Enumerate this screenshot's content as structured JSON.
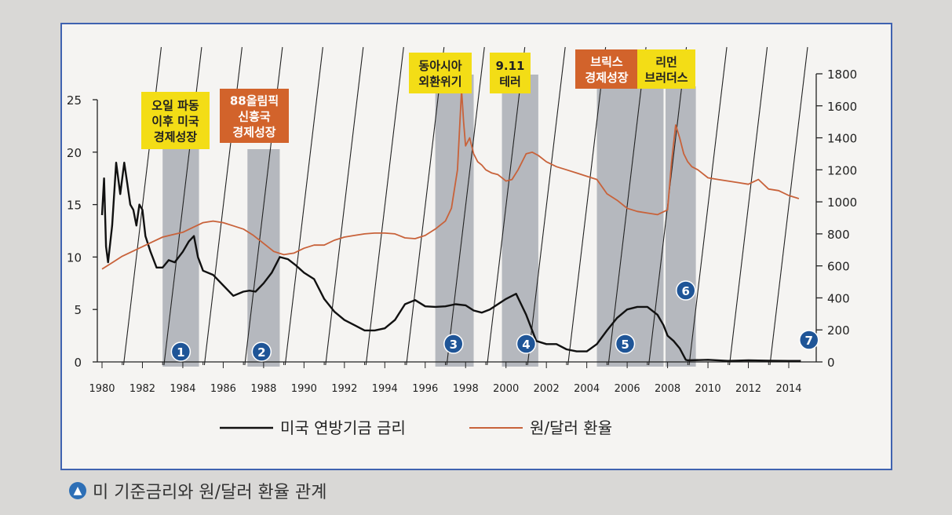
{
  "chart_data": {
    "type": "line",
    "left_axis": {
      "ticks": [
        0,
        5,
        10,
        15,
        20,
        25
      ],
      "ylim": [
        0,
        25
      ]
    },
    "right_axis": {
      "ticks": [
        0,
        200,
        400,
        600,
        800,
        1000,
        1200,
        1400,
        1600,
        1800
      ],
      "ylim": [
        0,
        1800
      ]
    },
    "x_axis": {
      "ticks": [
        "1980",
        "1982",
        "1984",
        "1986",
        "1988",
        "1990",
        "1992",
        "1994",
        "1996",
        "1998",
        "2000",
        "2002",
        "2004",
        "2006",
        "2008",
        "2010",
        "2012",
        "2014"
      ],
      "xlim": [
        1980,
        2015
      ]
    },
    "series": [
      {
        "name": "미국 연방기금 금리",
        "axis": "left",
        "color": "#111111",
        "x": [
          1980.0,
          1980.1,
          1980.2,
          1980.3,
          1980.5,
          1980.7,
          1980.9,
          1981.1,
          1981.25,
          1981.4,
          1981.55,
          1981.7,
          1981.85,
          1982.0,
          1982.15,
          1982.4,
          1982.7,
          1983.0,
          1983.3,
          1983.6,
          1984.0,
          1984.3,
          1984.55,
          1984.75,
          1985.0,
          1985.5,
          1986.0,
          1986.5,
          1987.0,
          1987.3,
          1987.6,
          1988.0,
          1988.4,
          1988.8,
          1989.2,
          1989.6,
          1990.0,
          1990.5,
          1991.0,
          1991.5,
          1992.0,
          1992.5,
          1993.0,
          1993.5,
          1994.0,
          1994.5,
          1995.0,
          1995.5,
          1996.0,
          1996.5,
          1997.0,
          1997.5,
          1998.0,
          1998.4,
          1998.8,
          1999.2,
          1999.6,
          2000.0,
          2000.5,
          2001.0,
          2001.5,
          2002.0,
          2002.5,
          2003.0,
          2003.5,
          2004.0,
          2004.5,
          2005.0,
          2005.5,
          2006.0,
          2006.5,
          2007.0,
          2007.5,
          2007.8,
          2008.0,
          2008.3,
          2008.6,
          2008.9,
          2009.0,
          2010.0,
          2011.0,
          2012.0,
          2013.0,
          2014.0,
          2014.6
        ],
        "y": [
          14.0,
          17.5,
          11.0,
          9.5,
          13.0,
          19.0,
          16.0,
          19.0,
          17.0,
          15.0,
          14.5,
          13.0,
          15.0,
          14.5,
          12.0,
          10.5,
          9.0,
          9.0,
          9.7,
          9.5,
          10.5,
          11.5,
          12.0,
          10.0,
          8.7,
          8.3,
          7.3,
          6.3,
          6.7,
          6.8,
          6.7,
          7.5,
          8.5,
          10.0,
          9.8,
          9.2,
          8.5,
          7.9,
          6.0,
          4.8,
          4.0,
          3.5,
          3.0,
          3.0,
          3.2,
          4.0,
          5.5,
          5.9,
          5.3,
          5.25,
          5.3,
          5.5,
          5.4,
          4.9,
          4.7,
          5.0,
          5.5,
          6.0,
          6.5,
          4.5,
          2.0,
          1.7,
          1.7,
          1.2,
          1.0,
          1.0,
          1.7,
          3.0,
          4.2,
          5.0,
          5.25,
          5.25,
          4.5,
          3.5,
          2.5,
          2.0,
          1.3,
          0.2,
          0.15,
          0.2,
          0.1,
          0.15,
          0.12,
          0.1,
          0.1
        ]
      },
      {
        "name": "원/달러 환율",
        "axis": "right",
        "color": "#c8623a",
        "x": [
          1980.0,
          1980.5,
          1981.0,
          1981.5,
          1982.0,
          1982.5,
          1983.0,
          1983.5,
          1984.0,
          1984.5,
          1985.0,
          1985.5,
          1986.0,
          1986.5,
          1987.0,
          1987.5,
          1988.0,
          1988.5,
          1989.0,
          1989.5,
          1990.0,
          1990.5,
          1991.0,
          1991.5,
          1992.0,
          1992.5,
          1993.0,
          1993.5,
          1994.0,
          1994.5,
          1995.0,
          1995.5,
          1996.0,
          1996.5,
          1997.0,
          1997.3,
          1997.6,
          1997.8,
          1997.9,
          1998.0,
          1998.2,
          1998.4,
          1998.6,
          1998.8,
          1999.0,
          1999.3,
          1999.6,
          2000.0,
          2000.3,
          2000.6,
          2001.0,
          2001.3,
          2001.6,
          2002.0,
          2002.5,
          2003.0,
          2003.5,
          2004.0,
          2004.5,
          2005.0,
          2005.5,
          2006.0,
          2006.5,
          2007.0,
          2007.5,
          2008.0,
          2008.2,
          2008.4,
          2008.6,
          2008.8,
          2009.0,
          2009.2,
          2009.5,
          2010.0,
          2010.5,
          2011.0,
          2011.5,
          2012.0,
          2012.5,
          2013.0,
          2013.5,
          2014.0,
          2014.5
        ],
        "y": [
          580,
          620,
          660,
          690,
          720,
          750,
          780,
          795,
          810,
          840,
          870,
          880,
          870,
          850,
          830,
          790,
          740,
          690,
          670,
          680,
          710,
          730,
          730,
          760,
          780,
          790,
          800,
          805,
          805,
          800,
          775,
          770,
          790,
          830,
          880,
          960,
          1200,
          1700,
          1500,
          1350,
          1400,
          1300,
          1250,
          1230,
          1200,
          1180,
          1170,
          1130,
          1140,
          1200,
          1300,
          1310,
          1290,
          1250,
          1220,
          1200,
          1180,
          1160,
          1140,
          1050,
          1010,
          960,
          940,
          930,
          920,
          950,
          1250,
          1480,
          1400,
          1300,
          1250,
          1220,
          1200,
          1150,
          1140,
          1130,
          1120,
          1110,
          1140,
          1080,
          1070,
          1040,
          1020
        ]
      }
    ],
    "shaded_periods": [
      {
        "label": "1",
        "x0": 1983.0,
        "x1": 1984.8
      },
      {
        "label": "2",
        "x0": 1987.2,
        "x1": 1988.8
      },
      {
        "label": "3",
        "x0": 1996.5,
        "x1": 1998.4
      },
      {
        "label": "4",
        "x0": 1999.8,
        "x1": 2001.6
      },
      {
        "label": "5",
        "x0": 2004.5,
        "x1": 2007.8
      },
      {
        "label": "6",
        "x0": 2007.9,
        "x1": 2009.4
      },
      {
        "label": "7",
        "x0": 2014.0,
        "x1": 2014.0
      }
    ],
    "annotations": [
      {
        "lines": [
          "오일 파동",
          "이후 미국",
          "경제성장"
        ],
        "style": "yellow"
      },
      {
        "lines": [
          "88올림픽",
          "신흥국",
          "경제성장"
        ],
        "style": "orange"
      },
      {
        "lines": [
          "동아시아",
          "외환위기"
        ],
        "style": "yellow"
      },
      {
        "lines": [
          "9.11",
          "테러"
        ],
        "style": "yellow"
      },
      {
        "lines": [
          "브릭스",
          "경제성장"
        ],
        "style": "orange"
      },
      {
        "lines": [
          "리먼",
          "브러더스"
        ],
        "style": "yellow"
      }
    ],
    "legend": [
      "미국 연방기금 금리",
      "원/달러 환율"
    ],
    "legend_position": "bottom"
  },
  "caption": "미 기준금리와 원/달러 환율 관계",
  "caption_icon": "up-arrow-icon",
  "colors": {
    "background": "#d9d8d6",
    "frame": "#3f62b0",
    "shade": "#a5a9b0",
    "badge": "#1f5597",
    "yellow_box": "#f3dd16",
    "orange_box": "#d2632b",
    "grid": "#222222"
  }
}
